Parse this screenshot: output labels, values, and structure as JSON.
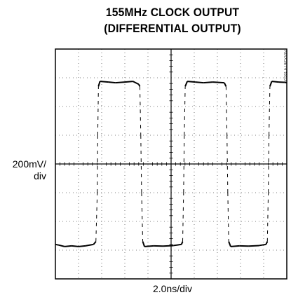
{
  "chart_data": {
    "type": "line",
    "title": "155MHz CLOCK OUTPUT",
    "subtitle": "(DIFFERENTIAL OUTPUT)",
    "ylabel": "200mV/\ndiv",
    "xlabel": "2.0ns/div",
    "part_number": "MAX3674 toc05",
    "grid": true,
    "x_divisions": 10,
    "y_divisions": 8,
    "x_unit": "ns",
    "y_unit": "mV",
    "xlim": [
      0,
      20
    ],
    "ylim": [
      -800,
      800
    ],
    "series": [
      {
        "values": [
          [
            0.0,
            -560
          ],
          [
            0.3,
            -565
          ],
          [
            0.8,
            -575
          ],
          [
            1.4,
            -570
          ],
          [
            2.0,
            -575
          ],
          [
            2.6,
            -570
          ],
          [
            3.3,
            -560
          ],
          [
            3.5,
            -540
          ],
          [
            3.62,
            -200
          ],
          [
            3.66,
            200
          ],
          [
            3.72,
            540
          ],
          [
            3.85,
            575
          ],
          [
            4.6,
            570
          ],
          [
            5.2,
            565
          ],
          [
            6.0,
            570
          ],
          [
            6.7,
            575
          ],
          [
            7.2,
            555
          ],
          [
            7.3,
            540
          ],
          [
            7.38,
            200
          ],
          [
            7.45,
            -200
          ],
          [
            7.55,
            -540
          ],
          [
            7.7,
            -575
          ],
          [
            8.5,
            -570
          ],
          [
            9.3,
            -572
          ],
          [
            10.2,
            -568
          ],
          [
            10.9,
            -560
          ],
          [
            11.0,
            -540
          ],
          [
            11.08,
            -200
          ],
          [
            11.14,
            200
          ],
          [
            11.22,
            540
          ],
          [
            11.4,
            575
          ],
          [
            12.1,
            570
          ],
          [
            12.8,
            565
          ],
          [
            13.6,
            570
          ],
          [
            14.6,
            565
          ],
          [
            14.75,
            540
          ],
          [
            14.83,
            200
          ],
          [
            14.9,
            -200
          ],
          [
            14.98,
            -540
          ],
          [
            15.15,
            -575
          ],
          [
            15.9,
            -570
          ],
          [
            16.7,
            -572
          ],
          [
            17.6,
            -568
          ],
          [
            18.2,
            -560
          ],
          [
            18.32,
            -540
          ],
          [
            18.4,
            -200
          ],
          [
            18.46,
            200
          ],
          [
            18.54,
            540
          ],
          [
            18.7,
            575
          ],
          [
            19.3,
            570
          ],
          [
            19.8,
            568
          ],
          [
            20.0,
            566
          ]
        ]
      }
    ]
  }
}
